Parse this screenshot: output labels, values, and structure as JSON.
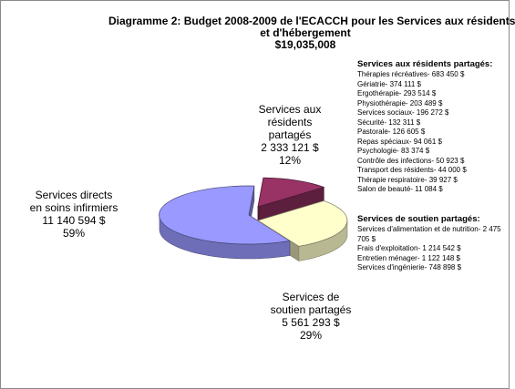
{
  "chart_data": {
    "type": "pie",
    "title": "Diagramme 2:  Budget 2008-2009 de l'ECACCH pour les Services aux résidents et d'hébergement",
    "title_line1": "Diagramme 2:  Budget 2008-2009 de l'ECACCH pour les Services aux résidents",
    "title_line2": "et d'hébergement",
    "total": "$19,035,008",
    "three_d": true,
    "slices": [
      {
        "name": "Services directs en soins infirmiers",
        "line1": "Services directs",
        "line2": "en soins infirmiers",
        "amount": "11 140 594 $",
        "value": 11140594,
        "percent": "59%",
        "color": "#9999ff"
      },
      {
        "name": "Services aux résidents partagés",
        "line1": "Services aux",
        "line2": "résidents",
        "line3": "partagés",
        "amount": "2 333 121 $",
        "value": 2333121,
        "percent": "12%",
        "color": "#993366"
      },
      {
        "name": "Services de soutien partagés",
        "line1": "Services de",
        "line2": "soutien partagés",
        "amount": "5 561 293 $",
        "value": 5561293,
        "percent": "29%",
        "color": "#ffffcc"
      }
    ]
  },
  "breakdown_resid": {
    "heading": "Services aux résidents partagés:",
    "items": [
      "Thérapies récréatives- 683 450 $",
      "Gériatrie- 374 111 $",
      "Ergothérapie- 293 514 $",
      "Physiothérapie- 203 489 $",
      "Services sociaux- 196 272 $",
      "Sécurité- 132 311 $",
      "Pastorale- 126 605 $",
      "Repas spéciaux- 94 061 $",
      "Psychologie- 83 374 $",
      "Contrôle des infections- 50 923 $",
      "Transport des résidents- 44 000 $",
      "Thérapie respiratoire- 39 927 $",
      "Salon de beauté- 11 084 $"
    ]
  },
  "breakdown_soutien": {
    "heading": "Services de soutien partagés:",
    "items": [
      "Services d'alimentation et de nutrition- 2 475 705 $",
      "Frais d'exploitation- 1 214 542 $",
      "Entretien ménager- 1 122 148 $",
      "Services d'ingénierie- 748 898 $"
    ]
  }
}
